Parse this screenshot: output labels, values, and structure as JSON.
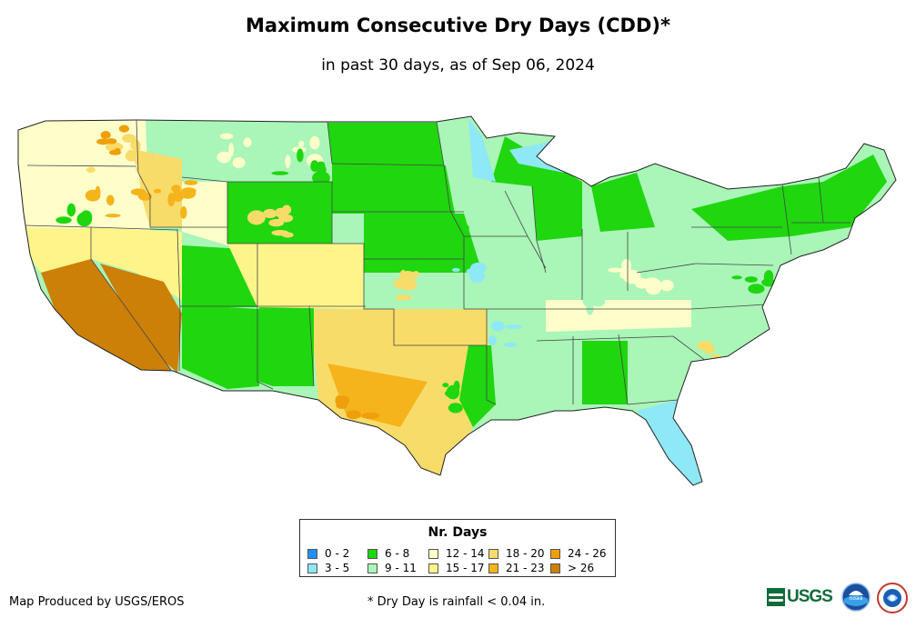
{
  "title": "Maximum Consecutive Dry Days (CDD)*",
  "subtitle": "in past 30 days, as of Sep 06, 2024",
  "legend": {
    "title": "Nr. Days",
    "items": [
      {
        "label": "0 - 2",
        "color": "#1e90ff"
      },
      {
        "label": "3 - 5",
        "color": "#8ee8f5"
      },
      {
        "label": "6 - 8",
        "color": "#1fd60f"
      },
      {
        "label": "9 - 11",
        "color": "#aaf5b8"
      },
      {
        "label": "12 - 14",
        "color": "#fefecb"
      },
      {
        "label": "15 - 17",
        "color": "#fef58a"
      },
      {
        "label": "18 - 20",
        "color": "#f8dc6a"
      },
      {
        "label": "21 - 23",
        "color": "#f5b41b"
      },
      {
        "label": "24 - 26",
        "color": "#ef9f0c"
      },
      {
        "label": "> 26",
        "color": "#cc8008"
      }
    ]
  },
  "footer": {
    "producer": "Map Produced by USGS/EROS",
    "footnote": "* Dry Day is rainfall < 0.04 in."
  },
  "logos": {
    "usgs": "USGS",
    "noaa": "noaa"
  }
}
